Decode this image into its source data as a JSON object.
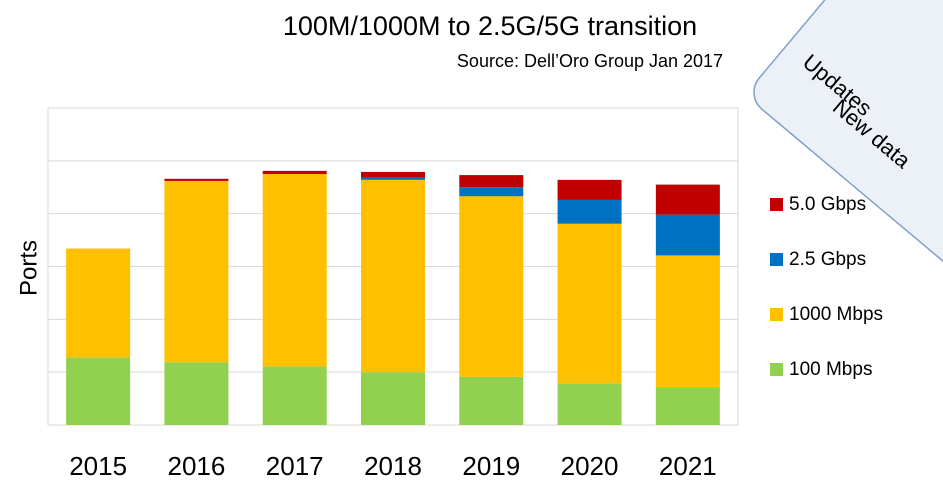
{
  "chart_data": {
    "type": "stacked_bar",
    "title": "100M/1000M to 2.5G/5G transition",
    "subtitle": "Source: Dell’Oro Group Jan 2017",
    "y_label": "Ports",
    "categories": [
      "2015",
      "2016",
      "2017",
      "2018",
      "2019",
      "2020",
      "2021"
    ],
    "series": [
      {
        "name": "100 Mbps",
        "color": "#92d050",
        "values": [
          1.28,
          1.19,
          1.11,
          1.0,
          0.91,
          0.79,
          0.7
        ]
      },
      {
        "name": "1000 Mbps",
        "color": "#ffc000",
        "values": [
          2.06,
          3.43,
          3.64,
          3.64,
          3.42,
          3.02,
          2.51
        ]
      },
      {
        "name": "2.5 Gbps",
        "color": "#0070c0",
        "values": [
          0,
          0,
          0,
          0.04,
          0.17,
          0.45,
          0.77
        ]
      },
      {
        "name": "5.0 Gbps",
        "color": "#c00000",
        "values": [
          0,
          0.04,
          0.06,
          0.11,
          0.23,
          0.38,
          0.57
        ]
      }
    ],
    "ylim": [
      0,
      6
    ],
    "yticks": [
      0,
      1,
      2,
      3,
      4,
      5,
      6
    ],
    "grid": true,
    "legend": "right",
    "annotations": [
      "Updates",
      "New data"
    ]
  }
}
